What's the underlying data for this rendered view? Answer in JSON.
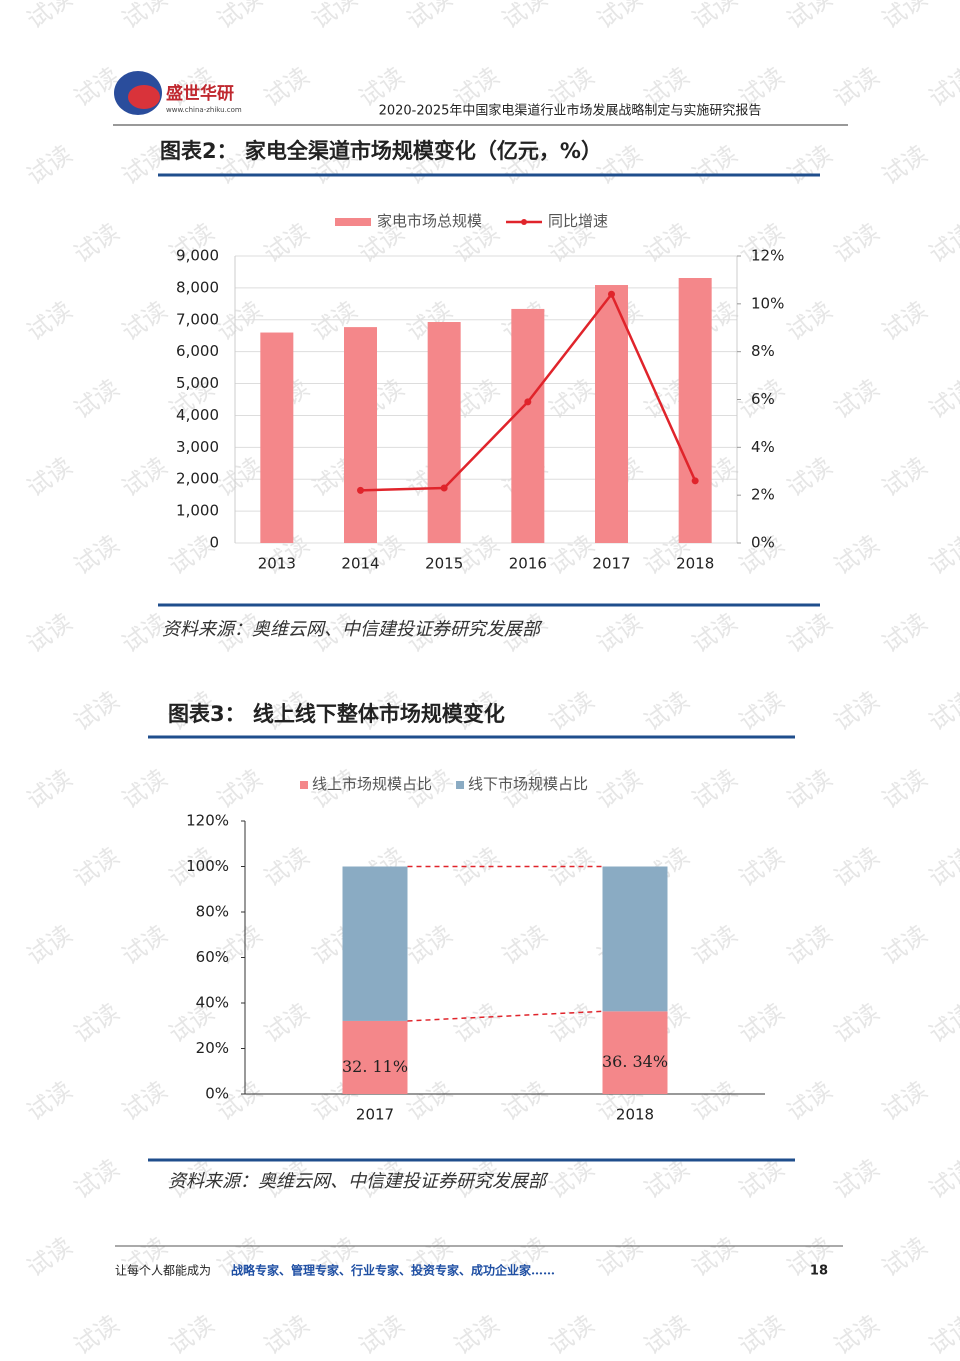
{
  "header": {
    "logo_text": "盛世华研",
    "logo_url": "www.china-zhiku.com",
    "report_title": "2020-2025年中国家电渠道行业市场发展战略制定与实施研究报告"
  },
  "watermark": "试读",
  "chart_data": [
    {
      "type": "bar",
      "title": "图表2：  家电全渠道市场规模变化（亿元，%）",
      "source": "资料来源：奥维云网、中信建投证券研究发展部",
      "categories": [
        "2013",
        "2014",
        "2015",
        "2016",
        "2017",
        "2018"
      ],
      "series": [
        {
          "name": "家电市场总规模",
          "type": "bar",
          "color": "#f4878a",
          "values": [
            6600,
            6770,
            6930,
            7340,
            8090,
            8310
          ]
        },
        {
          "name": "同比增速",
          "type": "line",
          "color": "#e0242b",
          "axis": "y2",
          "values": [
            null,
            2.2,
            2.3,
            5.9,
            10.4,
            2.6
          ]
        }
      ],
      "ylim": [
        0,
        9000
      ],
      "yticks": [
        0,
        {
          "value": 1000,
          "label": "1,000"
        },
        {
          "value": 2000,
          "label": "2,000"
        },
        {
          "value": 3000,
          "label": "3,000"
        },
        {
          "value": 4000,
          "label": "4,000"
        },
        {
          "value": 5000,
          "label": "5,000"
        },
        {
          "value": 6000,
          "label": "6,000"
        },
        {
          "value": 7000,
          "label": "7,000"
        },
        {
          "value": 8000,
          "label": "8,000"
        },
        {
          "value": 9000,
          "label": "9,000"
        }
      ],
      "y2lim": [
        0,
        12
      ],
      "y2ticks": [
        {
          "value": 0,
          "label": "0%"
        },
        {
          "value": 2,
          "label": "2%"
        },
        {
          "value": 4,
          "label": "4%"
        },
        {
          "value": 6,
          "label": "6%"
        },
        {
          "value": 8,
          "label": "8%"
        },
        {
          "value": 10,
          "label": "10%"
        },
        {
          "value": 12,
          "label": "12%"
        }
      ],
      "grid": true,
      "legend": "top"
    },
    {
      "type": "stacked_bar",
      "title": "图表3：  线上线下整体市场规模变化",
      "source": "资料来源：奥维云网、中信建投证券研究发展部",
      "categories": [
        "2017",
        "2018"
      ],
      "series": [
        {
          "name": "线上市场规模占比",
          "color": "#f4878a",
          "values": [
            32.11,
            36.34
          ],
          "value_labels": [
            "32. 11%",
            "36. 34%"
          ]
        },
        {
          "name": "线下市场规模占比",
          "color": "#8aabc3",
          "values": [
            67.89,
            63.66
          ]
        }
      ],
      "ylim": [
        0,
        120
      ],
      "yticks": [
        {
          "value": 0,
          "label": "0%"
        },
        {
          "value": 20,
          "label": "20%"
        },
        {
          "value": 40,
          "label": "40%"
        },
        {
          "value": 60,
          "label": "60%"
        },
        {
          "value": 80,
          "label": "80%"
        },
        {
          "value": 100,
          "label": "100%"
        },
        {
          "value": 120,
          "label": "120%"
        }
      ],
      "grid": false,
      "legend": "top"
    }
  ],
  "footer": {
    "slogan": "让每个人都能成为",
    "highlight": "战略专家、管理专家、行业专家、投资专家、成功企业家……",
    "page": "18"
  }
}
